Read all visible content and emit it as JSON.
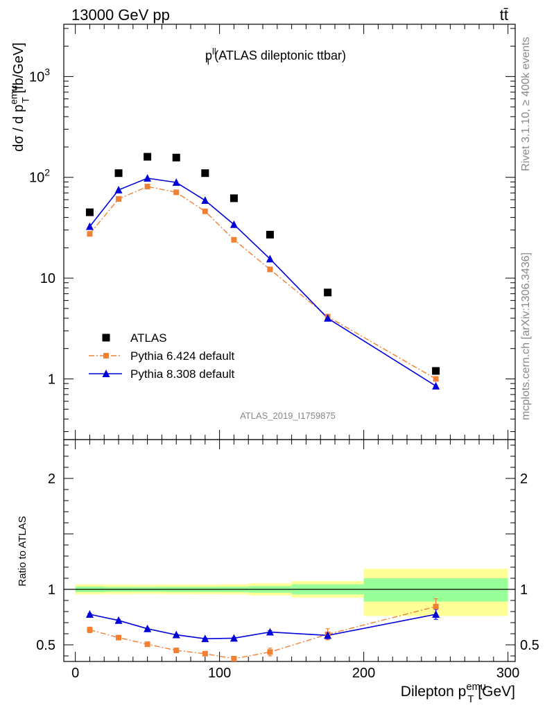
{
  "header": {
    "process_left": "13000 GeV pp",
    "process_right": "tt̄"
  },
  "side_labels": {
    "rivet": "Rivet 3.1.10, ≥ 400k events",
    "mcplots": "mcplots.cern.ch [arXiv:1306.3436]"
  },
  "analysis_id": "ATLAS_2019_I1759875",
  "colors": {
    "data": "#000000",
    "pythia6": "#f28032",
    "pythia8": "#0000d8",
    "band_inner": "#99ff99",
    "band_outer": "#ffff99"
  },
  "chart_data": [
    {
      "type": "line",
      "panel": "main",
      "title": {
        "main": "p",
        "sup": "ll",
        "sub": "T",
        "rest": " (ATLAS dileptonic ttbar)"
      },
      "ylabel": {
        "main": "dσ / d p",
        "sup": "emu",
        "sub": "T",
        "rest": " [fb/GeV]"
      },
      "yscale": "log",
      "ylim": [
        0.25,
        3300
      ],
      "xlim": [
        -8,
        305
      ],
      "yticks": [
        {
          "value": 1,
          "label": "1"
        },
        {
          "value": 10,
          "label": "10"
        },
        {
          "value": 100,
          "label": "10",
          "exp": "2"
        },
        {
          "value": 1000,
          "label": "10",
          "exp": "3"
        }
      ],
      "x": [
        10,
        30,
        50,
        70,
        90,
        110,
        135,
        175,
        250
      ],
      "series": [
        {
          "name": "ATLAS",
          "marker": "square",
          "values": [
            45,
            110,
            160,
            157,
            110,
            62,
            27,
            7.2,
            1.2
          ]
        },
        {
          "name": "Pythia 6.424 default",
          "marker": "small-square",
          "dash": "dashdot",
          "values": [
            27.5,
            61,
            81,
            71,
            46,
            24,
            12.2,
            4.15,
            1.0
          ]
        },
        {
          "name": "Pythia 8.308 default",
          "marker": "triangle",
          "values": [
            32.5,
            75,
            98,
            89,
            59,
            34,
            15.5,
            4.0,
            0.85
          ]
        }
      ],
      "legend_position": "bottom-left"
    },
    {
      "type": "line",
      "panel": "ratio",
      "ylabel": "Ratio to ATLAS",
      "ylim": [
        0.35,
        2.35
      ],
      "yticks": [
        {
          "value": 0.5,
          "label": "0.5"
        },
        {
          "value": 1,
          "label": "1"
        },
        {
          "value": 2,
          "label": "2"
        }
      ],
      "xlabel": {
        "main": "Dilepton p",
        "sup": "emu",
        "sub": "T",
        "rest": " [GeV]"
      },
      "xticks": [
        {
          "value": 0,
          "label": "0"
        },
        {
          "value": 100,
          "label": "100"
        },
        {
          "value": 200,
          "label": "200"
        },
        {
          "value": 300,
          "label": "300"
        }
      ],
      "bands": [
        {
          "xlow": 0,
          "xhigh": 20,
          "inner": [
            0.975,
            1.025
          ],
          "outer": [
            0.955,
            1.045
          ]
        },
        {
          "xlow": 20,
          "xhigh": 40,
          "inner": [
            0.978,
            1.022
          ],
          "outer": [
            0.957,
            1.043
          ]
        },
        {
          "xlow": 40,
          "xhigh": 60,
          "inner": [
            0.978,
            1.022
          ],
          "outer": [
            0.958,
            1.042
          ]
        },
        {
          "xlow": 60,
          "xhigh": 80,
          "inner": [
            0.977,
            1.023
          ],
          "outer": [
            0.957,
            1.043
          ]
        },
        {
          "xlow": 80,
          "xhigh": 100,
          "inner": [
            0.977,
            1.023
          ],
          "outer": [
            0.956,
            1.044
          ]
        },
        {
          "xlow": 100,
          "xhigh": 120,
          "inner": [
            0.976,
            1.024
          ],
          "outer": [
            0.955,
            1.045
          ]
        },
        {
          "xlow": 120,
          "xhigh": 150,
          "inner": [
            0.97,
            1.03
          ],
          "outer": [
            0.945,
            1.055
          ]
        },
        {
          "xlow": 150,
          "xhigh": 200,
          "inner": [
            0.955,
            1.045
          ],
          "outer": [
            0.925,
            1.075
          ]
        },
        {
          "xlow": 200,
          "xhigh": 300,
          "inner": [
            0.89,
            1.1
          ],
          "outer": [
            0.76,
            1.185
          ]
        }
      ],
      "x": [
        10,
        30,
        50,
        70,
        90,
        110,
        135,
        175,
        250
      ],
      "series": [
        {
          "name": "Pythia 6.424 default",
          "values": [
            0.635,
            0.565,
            0.505,
            0.45,
            0.42,
            0.375,
            0.435,
            0.595,
            0.845
          ],
          "errors": [
            0.025,
            0.015,
            0.012,
            0.012,
            0.015,
            0.02,
            0.035,
            0.05,
            0.07
          ]
        },
        {
          "name": "Pythia 8.308 default",
          "values": [
            0.775,
            0.72,
            0.645,
            0.59,
            0.555,
            0.56,
            0.615,
            0.585,
            0.775
          ],
          "errors": [
            0.008,
            0.008,
            0.006,
            0.006,
            0.007,
            0.008,
            0.012,
            0.03,
            0.045
          ]
        }
      ]
    }
  ]
}
